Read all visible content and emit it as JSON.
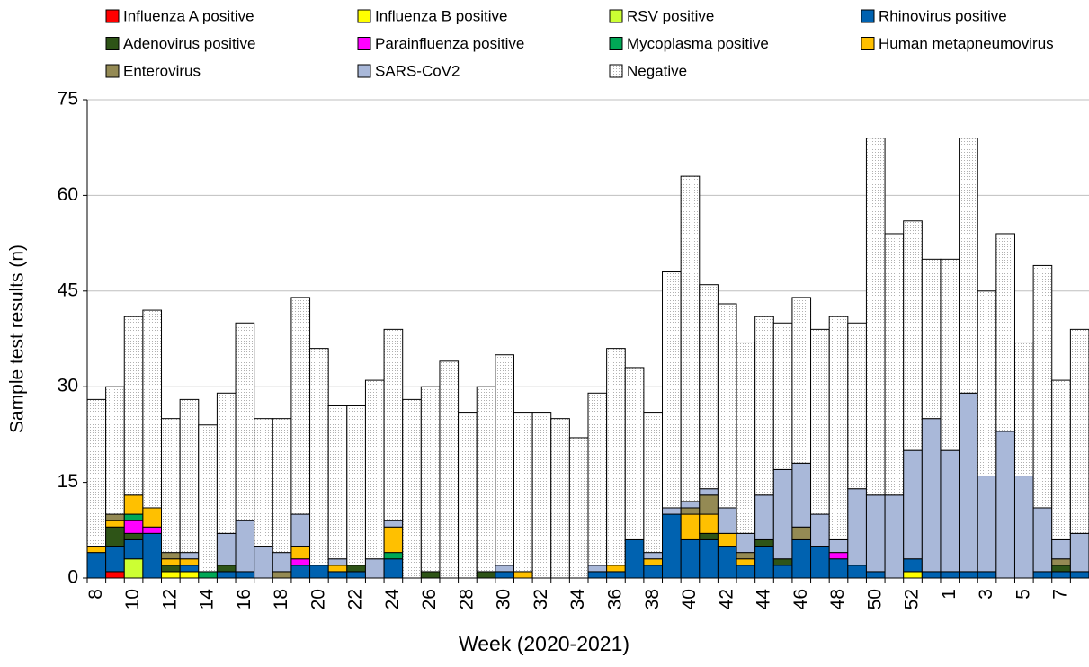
{
  "chart_data": {
    "type": "stacked_bar",
    "x_label": "Week (2020-2021)",
    "y_label": "Sample test results (n)",
    "categories": [
      "8",
      null,
      "10",
      null,
      "12",
      null,
      "14",
      null,
      "16",
      null,
      "18",
      null,
      "20",
      null,
      "22",
      null,
      "24",
      null,
      "26",
      null,
      "28",
      null,
      "30",
      null,
      "32",
      null,
      "34",
      null,
      "36",
      null,
      "38",
      null,
      "40",
      null,
      "42",
      null,
      "44",
      null,
      "46",
      null,
      "48",
      null,
      "50",
      null,
      "52",
      null,
      "1",
      null,
      "3",
      null,
      "5",
      null,
      "7",
      null
    ],
    "ylim": [
      0,
      75
    ],
    "yticks": [
      0,
      15,
      30,
      45,
      60,
      75
    ],
    "grid": true,
    "series": [
      {
        "name": "Influenza A positive",
        "color": "#ff0000",
        "values": [
          0,
          1,
          0,
          0,
          0,
          0,
          0,
          0,
          0,
          0,
          0,
          0,
          0,
          0,
          0,
          0,
          0,
          0,
          0,
          0,
          0,
          0,
          0,
          0,
          0,
          0,
          0,
          0,
          0,
          0,
          0,
          0,
          0,
          0,
          0,
          0,
          0,
          0,
          0,
          0,
          0,
          0,
          0,
          0,
          0,
          0,
          0,
          0,
          0,
          0,
          0,
          0,
          0,
          0
        ]
      },
      {
        "name": "Influenza B positive",
        "color": "#ffff00",
        "values": [
          0,
          0,
          0,
          0,
          1,
          1,
          0,
          0,
          0,
          0,
          0,
          0,
          0,
          0,
          0,
          0,
          0,
          0,
          0,
          0,
          0,
          0,
          0,
          0,
          0,
          0,
          0,
          0,
          0,
          0,
          0,
          0,
          0,
          0,
          0,
          0,
          0,
          0,
          0,
          0,
          0,
          0,
          0,
          0,
          1,
          0,
          0,
          0,
          0,
          0,
          0,
          0,
          0,
          0
        ]
      },
      {
        "name": "RSV positive",
        "color": "#ccff33",
        "values": [
          0,
          0,
          3,
          0,
          0,
          0,
          0,
          0,
          0,
          0,
          0,
          0,
          0,
          0,
          0,
          0,
          0,
          0,
          0,
          0,
          0,
          0,
          0,
          0,
          0,
          0,
          0,
          0,
          0,
          0,
          0,
          0,
          0,
          0,
          0,
          0,
          0,
          0,
          0,
          0,
          0,
          0,
          0,
          0,
          0,
          0,
          0,
          0,
          0,
          0,
          0,
          0,
          0,
          0
        ]
      },
      {
        "name": "Rhinovirus positive",
        "color": "#0062b0",
        "values": [
          4,
          4,
          3,
          7,
          0,
          1,
          0,
          1,
          1,
          0,
          0,
          2,
          2,
          1,
          1,
          0,
          3,
          0,
          0,
          0,
          0,
          0,
          1,
          0,
          0,
          0,
          0,
          1,
          1,
          6,
          2,
          10,
          6,
          6,
          5,
          2,
          5,
          2,
          6,
          5,
          3,
          2,
          1,
          0,
          2,
          1,
          1,
          1,
          1,
          0,
          0,
          1,
          1,
          1
        ]
      },
      {
        "name": "Adenovirus positive",
        "color": "#2e5417",
        "values": [
          0,
          3,
          1,
          0,
          1,
          0,
          0,
          1,
          0,
          0,
          0,
          0,
          0,
          0,
          1,
          0,
          0,
          0,
          1,
          0,
          0,
          1,
          0,
          0,
          0,
          0,
          0,
          0,
          0,
          0,
          0,
          0,
          0,
          1,
          0,
          0,
          1,
          1,
          0,
          0,
          0,
          0,
          0,
          0,
          0,
          0,
          0,
          0,
          0,
          0,
          0,
          0,
          1,
          0
        ]
      },
      {
        "name": "Parainfluenza positive",
        "color": "#ff00ff",
        "values": [
          0,
          0,
          2,
          1,
          0,
          0,
          0,
          0,
          0,
          0,
          0,
          1,
          0,
          0,
          0,
          0,
          0,
          0,
          0,
          0,
          0,
          0,
          0,
          0,
          0,
          0,
          0,
          0,
          0,
          0,
          0,
          0,
          0,
          0,
          0,
          0,
          0,
          0,
          0,
          0,
          1,
          0,
          0,
          0,
          0,
          0,
          0,
          0,
          0,
          0,
          0,
          0,
          0,
          0
        ]
      },
      {
        "name": "Mycoplasma positive",
        "color": "#00a856",
        "values": [
          0,
          0,
          1,
          0,
          0,
          0,
          1,
          0,
          0,
          0,
          0,
          0,
          0,
          0,
          0,
          0,
          1,
          0,
          0,
          0,
          0,
          0,
          0,
          0,
          0,
          0,
          0,
          0,
          0,
          0,
          0,
          0,
          0,
          0,
          0,
          0,
          0,
          0,
          0,
          0,
          0,
          0,
          0,
          0,
          0,
          0,
          0,
          0,
          0,
          0,
          0,
          0,
          0,
          0
        ]
      },
      {
        "name": "Human metapneumovirus",
        "color": "#ffc000",
        "values": [
          1,
          1,
          3,
          3,
          1,
          1,
          0,
          0,
          0,
          0,
          0,
          2,
          0,
          1,
          0,
          0,
          4,
          0,
          0,
          0,
          0,
          0,
          0,
          1,
          0,
          0,
          0,
          0,
          1,
          0,
          1,
          0,
          4,
          3,
          2,
          1,
          0,
          0,
          0,
          0,
          0,
          0,
          0,
          0,
          0,
          0,
          0,
          0,
          0,
          0,
          0,
          0,
          0,
          0
        ]
      },
      {
        "name": "Enterovirus",
        "color": "#948a54",
        "values": [
          0,
          1,
          0,
          0,
          1,
          0,
          0,
          0,
          0,
          0,
          1,
          0,
          0,
          0,
          0,
          0,
          0,
          0,
          0,
          0,
          0,
          0,
          0,
          0,
          0,
          0,
          0,
          0,
          0,
          0,
          0,
          0,
          1,
          3,
          0,
          1,
          0,
          0,
          2,
          0,
          0,
          0,
          0,
          0,
          0,
          0,
          0,
          0,
          0,
          0,
          0,
          0,
          1,
          0
        ]
      },
      {
        "name": "SARS-CoV2",
        "color": "#a9b8d9",
        "values": [
          0,
          0,
          0,
          0,
          0,
          1,
          0,
          5,
          8,
          5,
          3,
          5,
          0,
          1,
          0,
          3,
          1,
          0,
          0,
          0,
          0,
          0,
          1,
          0,
          0,
          0,
          0,
          1,
          0,
          0,
          1,
          1,
          1,
          1,
          4,
          3,
          7,
          14,
          10,
          5,
          2,
          12,
          12,
          13,
          17,
          24,
          19,
          28,
          15,
          23,
          16,
          10,
          3,
          6
        ]
      },
      {
        "name": "Negative",
        "color": "#f2f2f2",
        "values": [
          23,
          20,
          28,
          31,
          21,
          24,
          23,
          22,
          31,
          20,
          21,
          34,
          34,
          24,
          25,
          28,
          30,
          28,
          29,
          34,
          26,
          29,
          33,
          25,
          26,
          25,
          22,
          27,
          34,
          27,
          22,
          37,
          51,
          32,
          32,
          30,
          28,
          23,
          26,
          29,
          35,
          26,
          56,
          41,
          36,
          25,
          30,
          40,
          29,
          31,
          21,
          38,
          25,
          32
        ]
      }
    ]
  }
}
